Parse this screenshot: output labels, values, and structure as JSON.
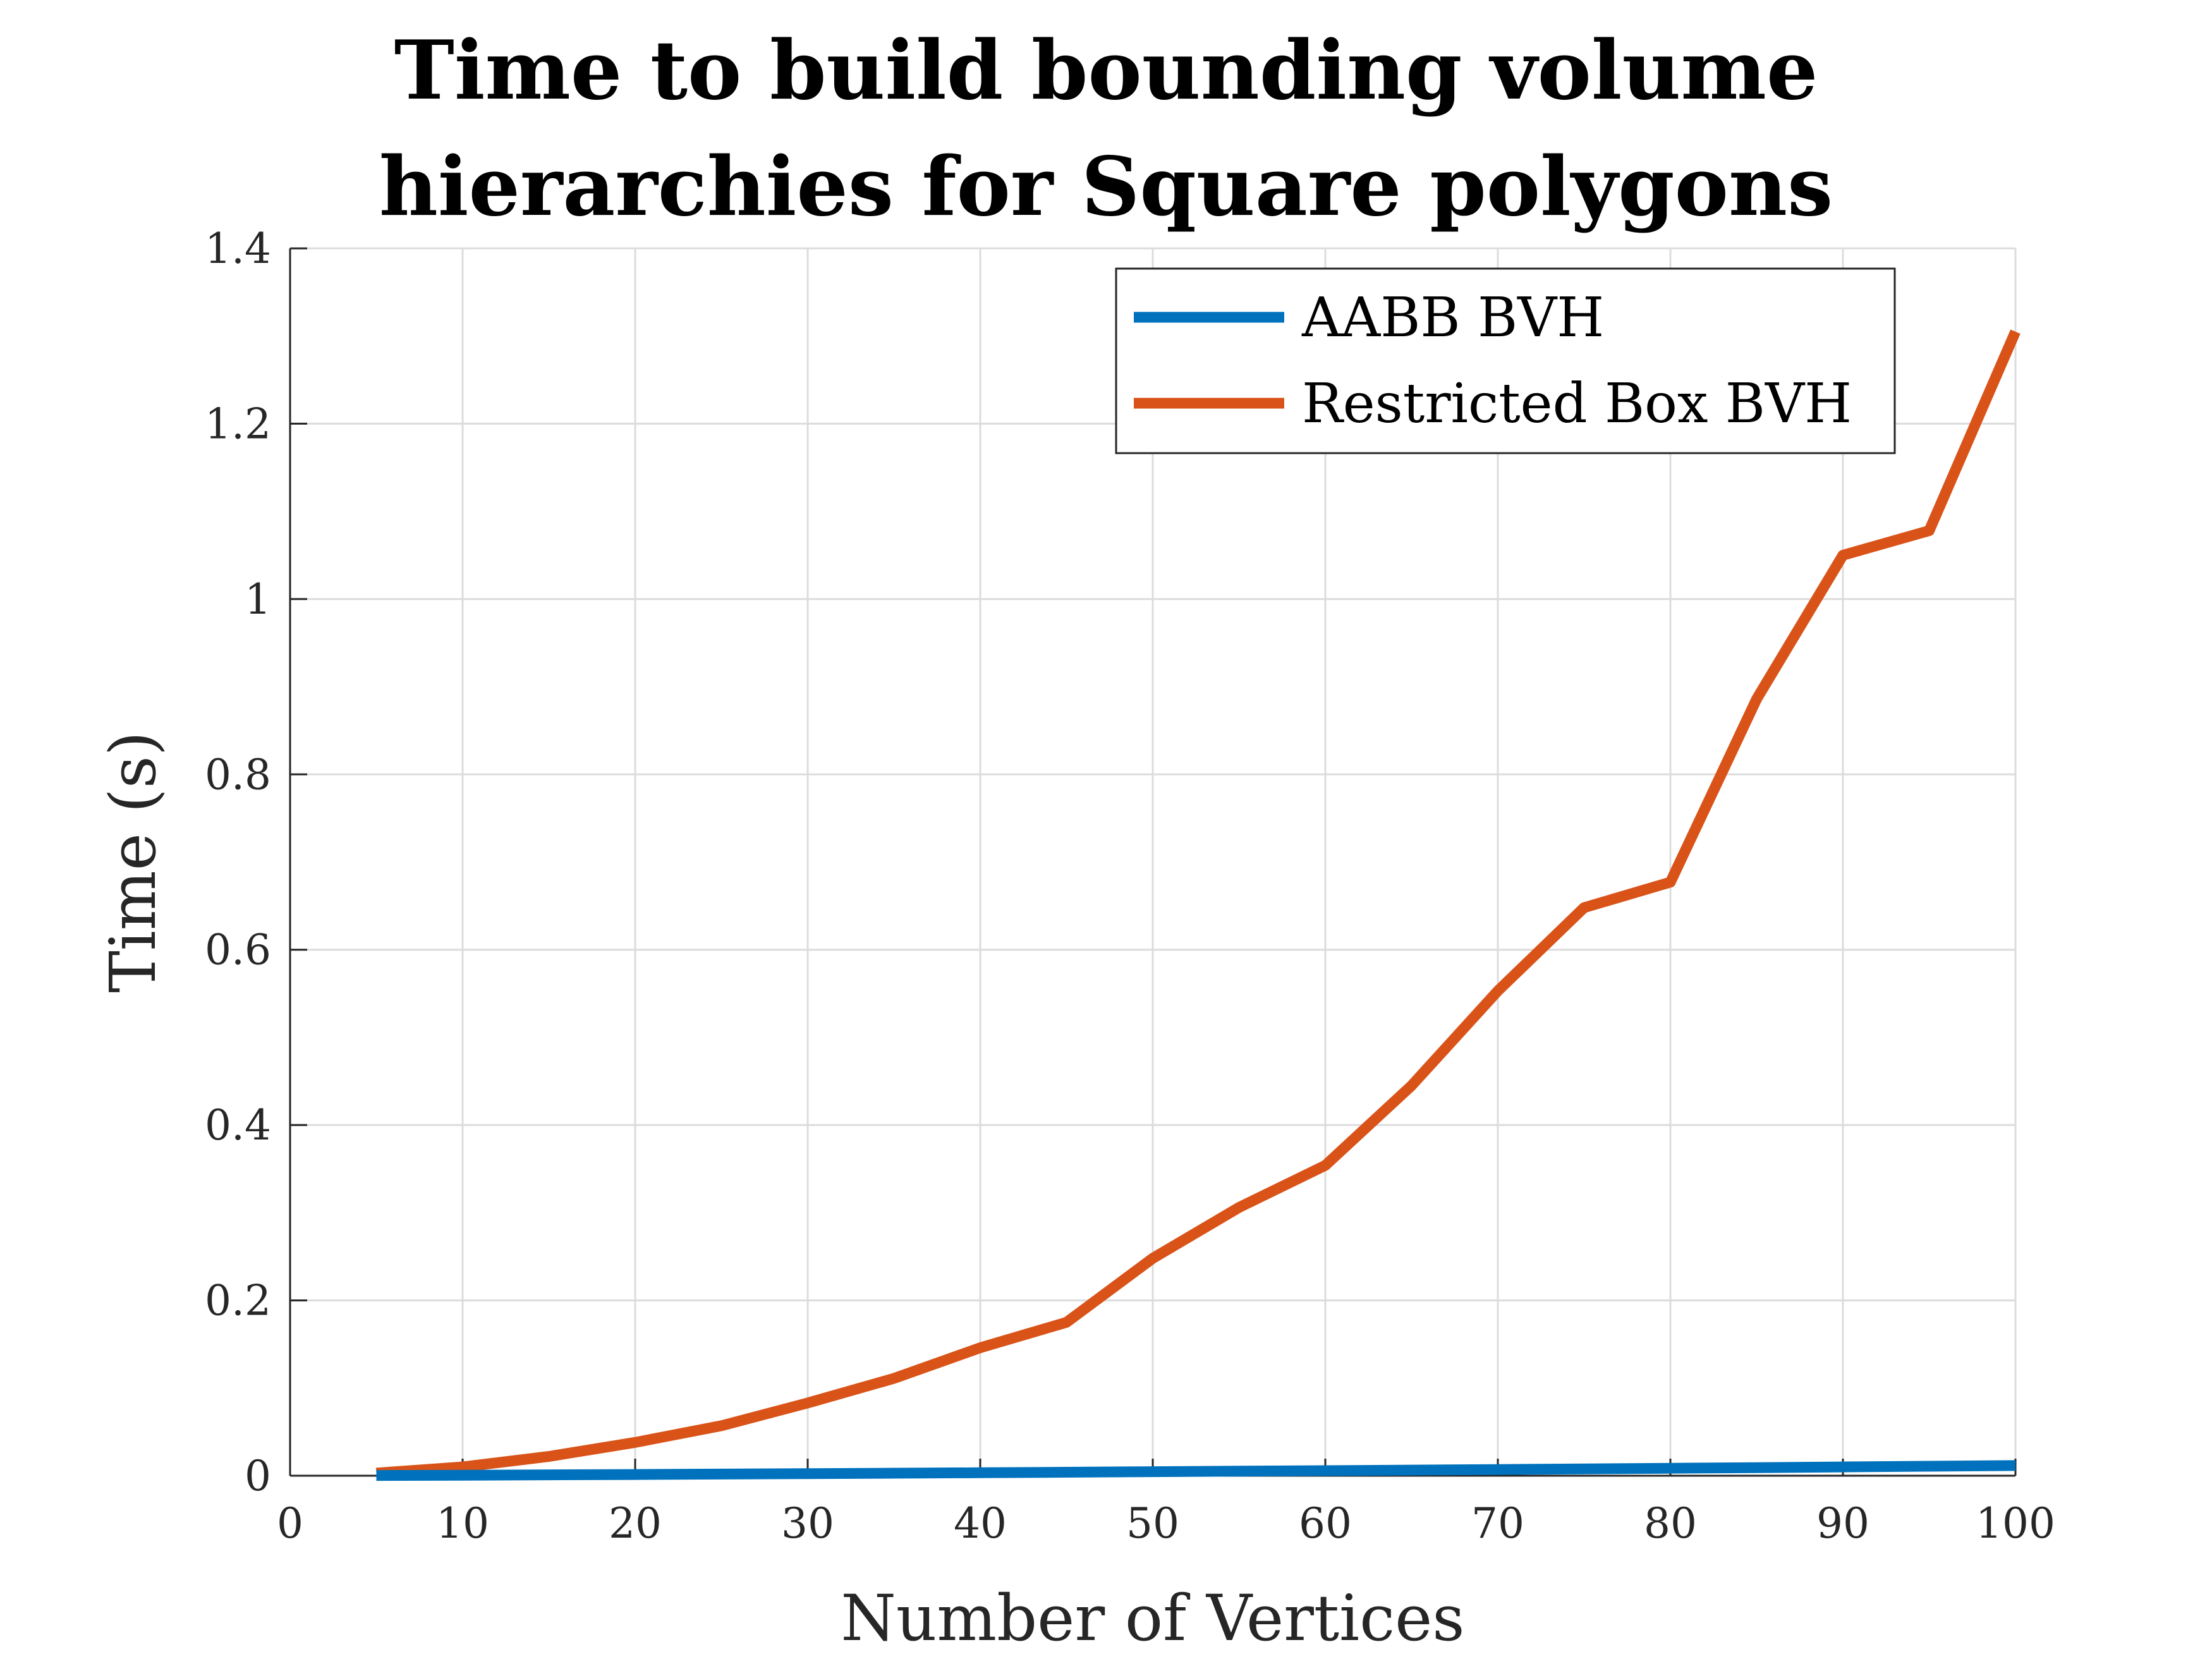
{
  "chart_data": {
    "type": "line",
    "title_lines": [
      "Time to build bounding volume",
      "hierarchies for Square polygons"
    ],
    "xlabel": "Number of Vertices",
    "ylabel": "Time (s)",
    "xlim": [
      0,
      100
    ],
    "ylim": [
      0,
      1.4
    ],
    "x_ticks": [
      0,
      10,
      20,
      30,
      40,
      50,
      60,
      70,
      80,
      90,
      100
    ],
    "x_tick_labels": [
      "0",
      "10",
      "20",
      "30",
      "40",
      "50",
      "60",
      "70",
      "80",
      "90",
      "100"
    ],
    "y_ticks": [
      0,
      0.2,
      0.4,
      0.6,
      0.8,
      1,
      1.2,
      1.4
    ],
    "y_tick_labels": [
      "0",
      "0.2",
      "0.4",
      "0.6",
      "0.8",
      "1",
      "1.2",
      "1.4"
    ],
    "grid": true,
    "legend_position": "top-right",
    "x": [
      5,
      10,
      15,
      20,
      25,
      30,
      35,
      40,
      45,
      50,
      55,
      60,
      65,
      70,
      75,
      80,
      85,
      90,
      95,
      100
    ],
    "series": [
      {
        "name": "AABB BVH",
        "color": "#0072BD",
        "values": [
          0.0003,
          0.0006,
          0.001,
          0.0014,
          0.0019,
          0.0024,
          0.0029,
          0.0034,
          0.004,
          0.0046,
          0.0052,
          0.0058,
          0.0064,
          0.0071,
          0.0078,
          0.0085,
          0.0092,
          0.01,
          0.0108,
          0.0116
        ]
      },
      {
        "name": "Restricted Box BVH",
        "color": "#D95319",
        "values": [
          0.003,
          0.01,
          0.022,
          0.038,
          0.057,
          0.083,
          0.111,
          0.146,
          0.175,
          0.248,
          0.306,
          0.354,
          0.445,
          0.553,
          0.648,
          0.677,
          0.886,
          1.05,
          1.078,
          1.305
        ]
      }
    ]
  }
}
